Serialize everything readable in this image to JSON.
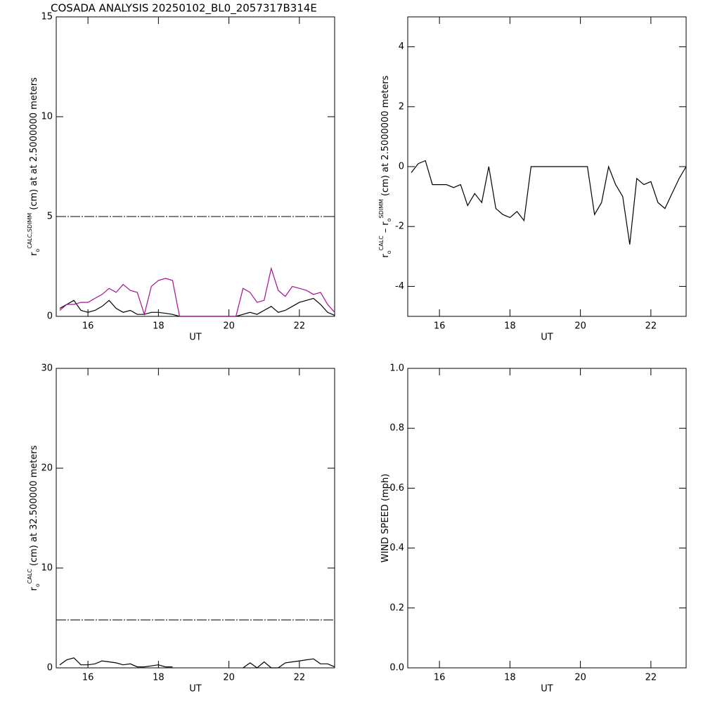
{
  "chart_data": [
    {
      "type": "line",
      "title": "COSADA ANALYSIS 20250102_BL0_2057317B314E",
      "xlabel": "UT",
      "ylabel": [
        {
          "text": "r"
        },
        {
          "text": "o",
          "style": "sub"
        },
        {
          "text": "CALC,SDIMM",
          "style": "sup"
        },
        {
          "text": "(cm)  at  at 2.5000000 meters"
        }
      ],
      "xlim": [
        15.1,
        23.0
      ],
      "xticks": [
        16,
        18,
        20,
        22
      ],
      "ylim": [
        0,
        15
      ],
      "yticks": [
        0,
        5,
        10,
        15
      ],
      "threshold": 5,
      "x": [
        15.2,
        15.4,
        15.6,
        15.8,
        16.0,
        16.2,
        16.4,
        16.6,
        16.8,
        17.0,
        17.2,
        17.4,
        17.6,
        17.8,
        18.0,
        18.2,
        18.4,
        18.6,
        18.8,
        19.0,
        19.2,
        19.4,
        19.6,
        19.8,
        20.0,
        20.2,
        20.4,
        20.6,
        20.8,
        21.0,
        21.2,
        21.4,
        21.6,
        21.8,
        22.0,
        22.2,
        22.4,
        22.6,
        22.8,
        23.0
      ],
      "series": [
        {
          "color": "#000000",
          "values": [
            0.4,
            0.6,
            0.8,
            0.3,
            0.2,
            0.3,
            0.5,
            0.8,
            0.4,
            0.2,
            0.3,
            0.1,
            0.1,
            0.2,
            0.2,
            0.15,
            0.1,
            0,
            0,
            0,
            0,
            0,
            0,
            0,
            0,
            0,
            0.1,
            0.2,
            0.1,
            0.3,
            0.5,
            0.2,
            0.3,
            0.5,
            0.7,
            0.8,
            0.9,
            0.6,
            0.2,
            0.05
          ]
        },
        {
          "color": "#a8108f",
          "values": [
            0.3,
            0.6,
            0.6,
            0.7,
            0.7,
            0.9,
            1.1,
            1.4,
            1.2,
            1.6,
            1.3,
            1.2,
            0.1,
            1.5,
            1.8,
            1.9,
            1.8,
            0,
            0,
            0,
            0,
            0,
            0,
            0,
            0,
            0,
            1.4,
            1.2,
            0.7,
            0.8,
            2.4,
            1.3,
            1.0,
            1.5,
            1.4,
            1.3,
            1.1,
            1.2,
            0.6,
            0.2
          ]
        }
      ]
    },
    {
      "type": "line",
      "xlabel": "UT",
      "ylabel": [
        {
          "text": "r"
        },
        {
          "text": "o",
          "style": "sub"
        },
        {
          "text": "CALC",
          "style": "sup"
        },
        {
          "text": "–"
        },
        {
          "text": "r"
        },
        {
          "text": "o",
          "style": "sub"
        },
        {
          "text": "SDIMM",
          "style": "sup"
        },
        {
          "text": "(cm) at 2.5000000 meters"
        }
      ],
      "xlim": [
        15.1,
        23.0
      ],
      "xticks": [
        16,
        18,
        20,
        22
      ],
      "ylim": [
        -5,
        5
      ],
      "yticks": [
        -4,
        -2,
        0,
        2,
        4
      ],
      "x": [
        15.2,
        15.4,
        15.6,
        15.8,
        16.0,
        16.2,
        16.4,
        16.6,
        16.8,
        17.0,
        17.2,
        17.4,
        17.6,
        17.8,
        18.0,
        18.2,
        18.4,
        18.6,
        18.8,
        19.0,
        19.2,
        19.4,
        19.6,
        19.8,
        20.0,
        20.2,
        20.4,
        20.6,
        20.8,
        21.0,
        21.2,
        21.4,
        21.6,
        21.8,
        22.0,
        22.2,
        22.4,
        22.6,
        22.8,
        23.0
      ],
      "series": [
        {
          "color": "#000000",
          "values": [
            -0.2,
            0.1,
            0.2,
            -0.6,
            -0.6,
            -0.6,
            -0.7,
            -0.6,
            -1.3,
            -0.9,
            -1.2,
            0,
            -1.4,
            -1.6,
            -1.7,
            -1.5,
            -1.8,
            0,
            0,
            0,
            0,
            0,
            0,
            0,
            0,
            0,
            -1.6,
            -1.2,
            0,
            -0.6,
            -1.0,
            -2.6,
            -0.4,
            -0.6,
            -0.5,
            -1.2,
            -1.4,
            -0.9,
            -0.4,
            0
          ]
        }
      ]
    },
    {
      "type": "line",
      "xlabel": "UT",
      "ylabel": [
        {
          "text": "r"
        },
        {
          "text": "o",
          "style": "sub"
        },
        {
          "text": "CALC",
          "style": "sup"
        },
        {
          "text": "(cm) at 32.500000 meters"
        }
      ],
      "xlim": [
        15.1,
        23.0
      ],
      "xticks": [
        16,
        18,
        20,
        22
      ],
      "ylim": [
        0,
        30
      ],
      "yticks": [
        0,
        10,
        20,
        30
      ],
      "threshold": 4.8,
      "x": [
        15.2,
        15.4,
        15.6,
        15.8,
        16.0,
        16.2,
        16.4,
        16.6,
        16.8,
        17.0,
        17.2,
        17.4,
        17.6,
        17.8,
        18.0,
        18.2,
        18.4,
        18.6,
        18.8,
        19.0,
        19.2,
        19.4,
        19.6,
        19.8,
        20.0,
        20.2,
        20.4,
        20.6,
        20.8,
        21.0,
        21.2,
        21.4,
        21.6,
        21.8,
        22.0,
        22.2,
        22.4,
        22.6,
        22.8,
        23.0
      ],
      "series": [
        {
          "color": "#000000",
          "values": [
            0.3,
            0.8,
            1.0,
            0.3,
            0.3,
            0.4,
            0.7,
            0.6,
            0.5,
            0.3,
            0.4,
            0.1,
            0.1,
            0.2,
            0.3,
            0.1,
            0.1,
            null,
            null,
            null,
            null,
            null,
            null,
            null,
            null,
            null,
            0,
            0.5,
            0,
            0.6,
            0,
            0,
            0.5,
            0.6,
            0.7,
            0.8,
            0.9,
            0.4,
            0.4,
            0.1
          ]
        }
      ]
    },
    {
      "type": "line",
      "xlabel": "UT",
      "ylabel": [
        {
          "text": "WIND SPEED (mph)"
        }
      ],
      "xlim": [
        15.1,
        23.0
      ],
      "xticks": [
        16,
        18,
        20,
        22
      ],
      "ylim": [
        0,
        1
      ],
      "yticks": [
        {
          "value": 0,
          "label": "0.0"
        },
        {
          "value": 0.2,
          "label": "0.2"
        },
        {
          "value": 0.4,
          "label": "0.4"
        },
        {
          "value": 0.6,
          "label": "0.6"
        },
        {
          "value": 0.8,
          "label": "0.8"
        },
        {
          "value": 1,
          "label": "1.0"
        }
      ],
      "x": [],
      "series": []
    }
  ]
}
